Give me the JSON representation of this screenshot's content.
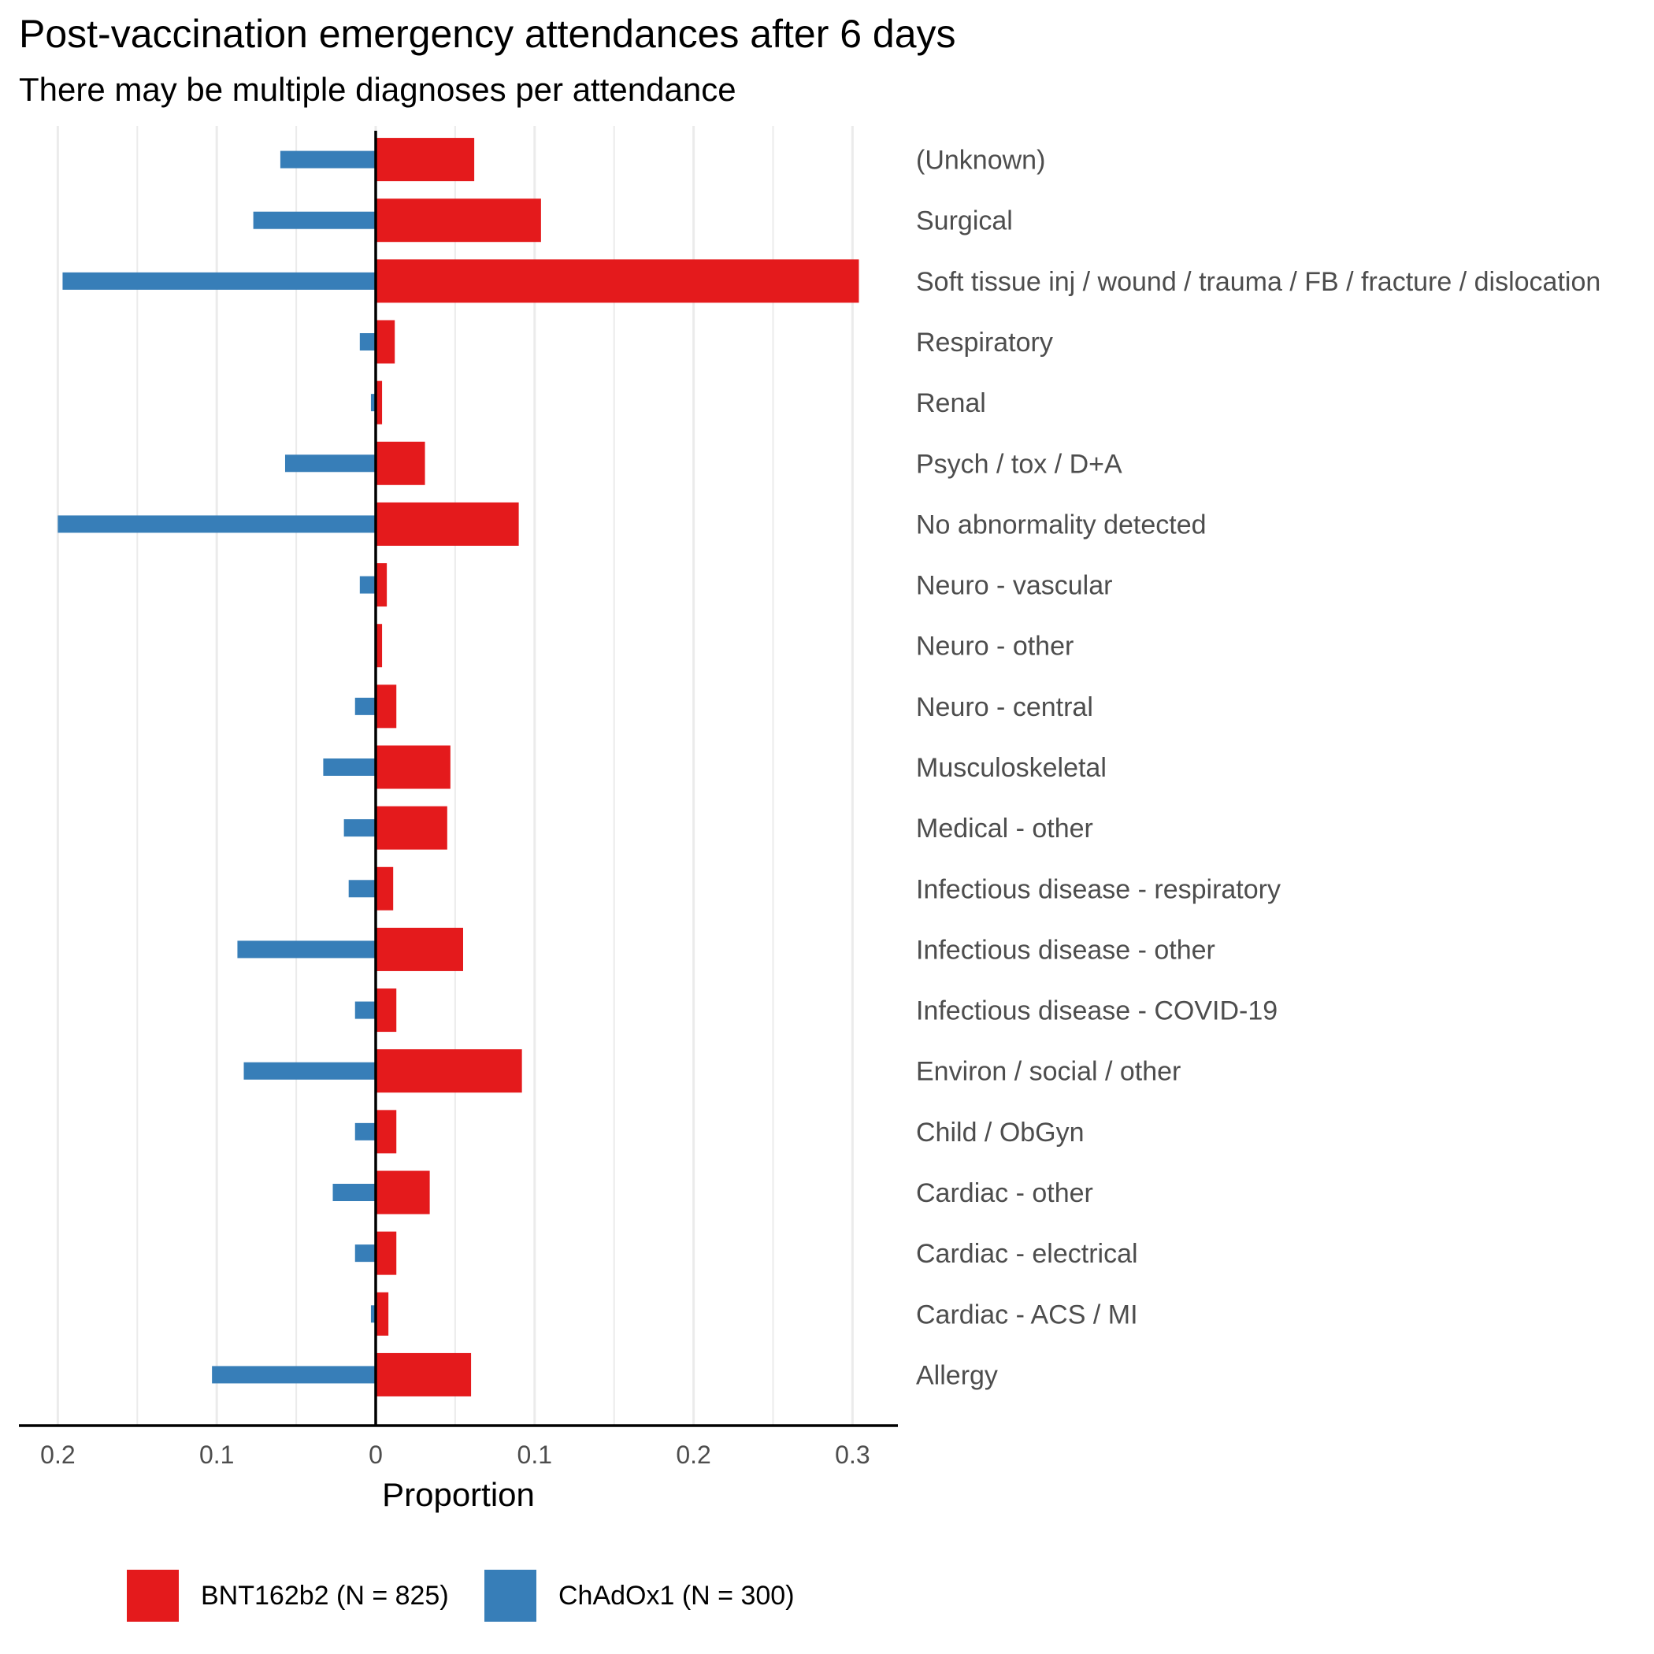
{
  "chart_data": {
    "type": "bar",
    "title": "Post-vaccination emergency attendances after 6 days",
    "subtitle": "There may be multiple diagnoses per attendance",
    "xlabel": "Proportion",
    "ylabel": "",
    "xlim": [
      -0.225,
      0.33
    ],
    "x_ticks": [
      -0.2,
      -0.1,
      0,
      0.1,
      0.2,
      0.3
    ],
    "x_tick_labels": [
      "0.2",
      "0.1",
      "0",
      "0.1",
      "0.2",
      "0.3"
    ],
    "grid": true,
    "legend_position": "bottom",
    "categories": [
      "(Unknown)",
      "Surgical",
      "Soft tissue inj / wound / trauma / FB / fracture / dislocation",
      "Respiratory",
      "Renal",
      "Psych / tox / D+A",
      "No abnormality detected",
      "Neuro - vascular",
      "Neuro - other",
      "Neuro - central",
      "Musculoskeletal",
      "Medical - other",
      "Infectious disease - respiratory",
      "Infectious disease - other",
      "Infectious disease - COVID-19",
      "Environ / social / other",
      "Child / ObGyn",
      "Cardiac - other",
      "Cardiac - electrical",
      "Cardiac - ACS / MI",
      "Allergy"
    ],
    "series": [
      {
        "name": "BNT162b2 (N = 825)",
        "color": "#e41a1c",
        "direction": "right",
        "values": [
          0.062,
          0.104,
          0.304,
          0.012,
          0.004,
          0.031,
          0.09,
          0.007,
          0.004,
          0.013,
          0.047,
          0.045,
          0.011,
          0.055,
          0.013,
          0.092,
          0.013,
          0.034,
          0.013,
          0.008,
          0.06
        ]
      },
      {
        "name": "ChAdOx1 (N = 300)",
        "color": "#377eb8",
        "direction": "left",
        "values": [
          0.06,
          0.077,
          0.197,
          0.01,
          0.003,
          0.057,
          0.2,
          0.01,
          0.0,
          0.013,
          0.033,
          0.02,
          0.017,
          0.087,
          0.013,
          0.083,
          0.013,
          0.027,
          0.013,
          0.003,
          0.103
        ]
      }
    ]
  }
}
